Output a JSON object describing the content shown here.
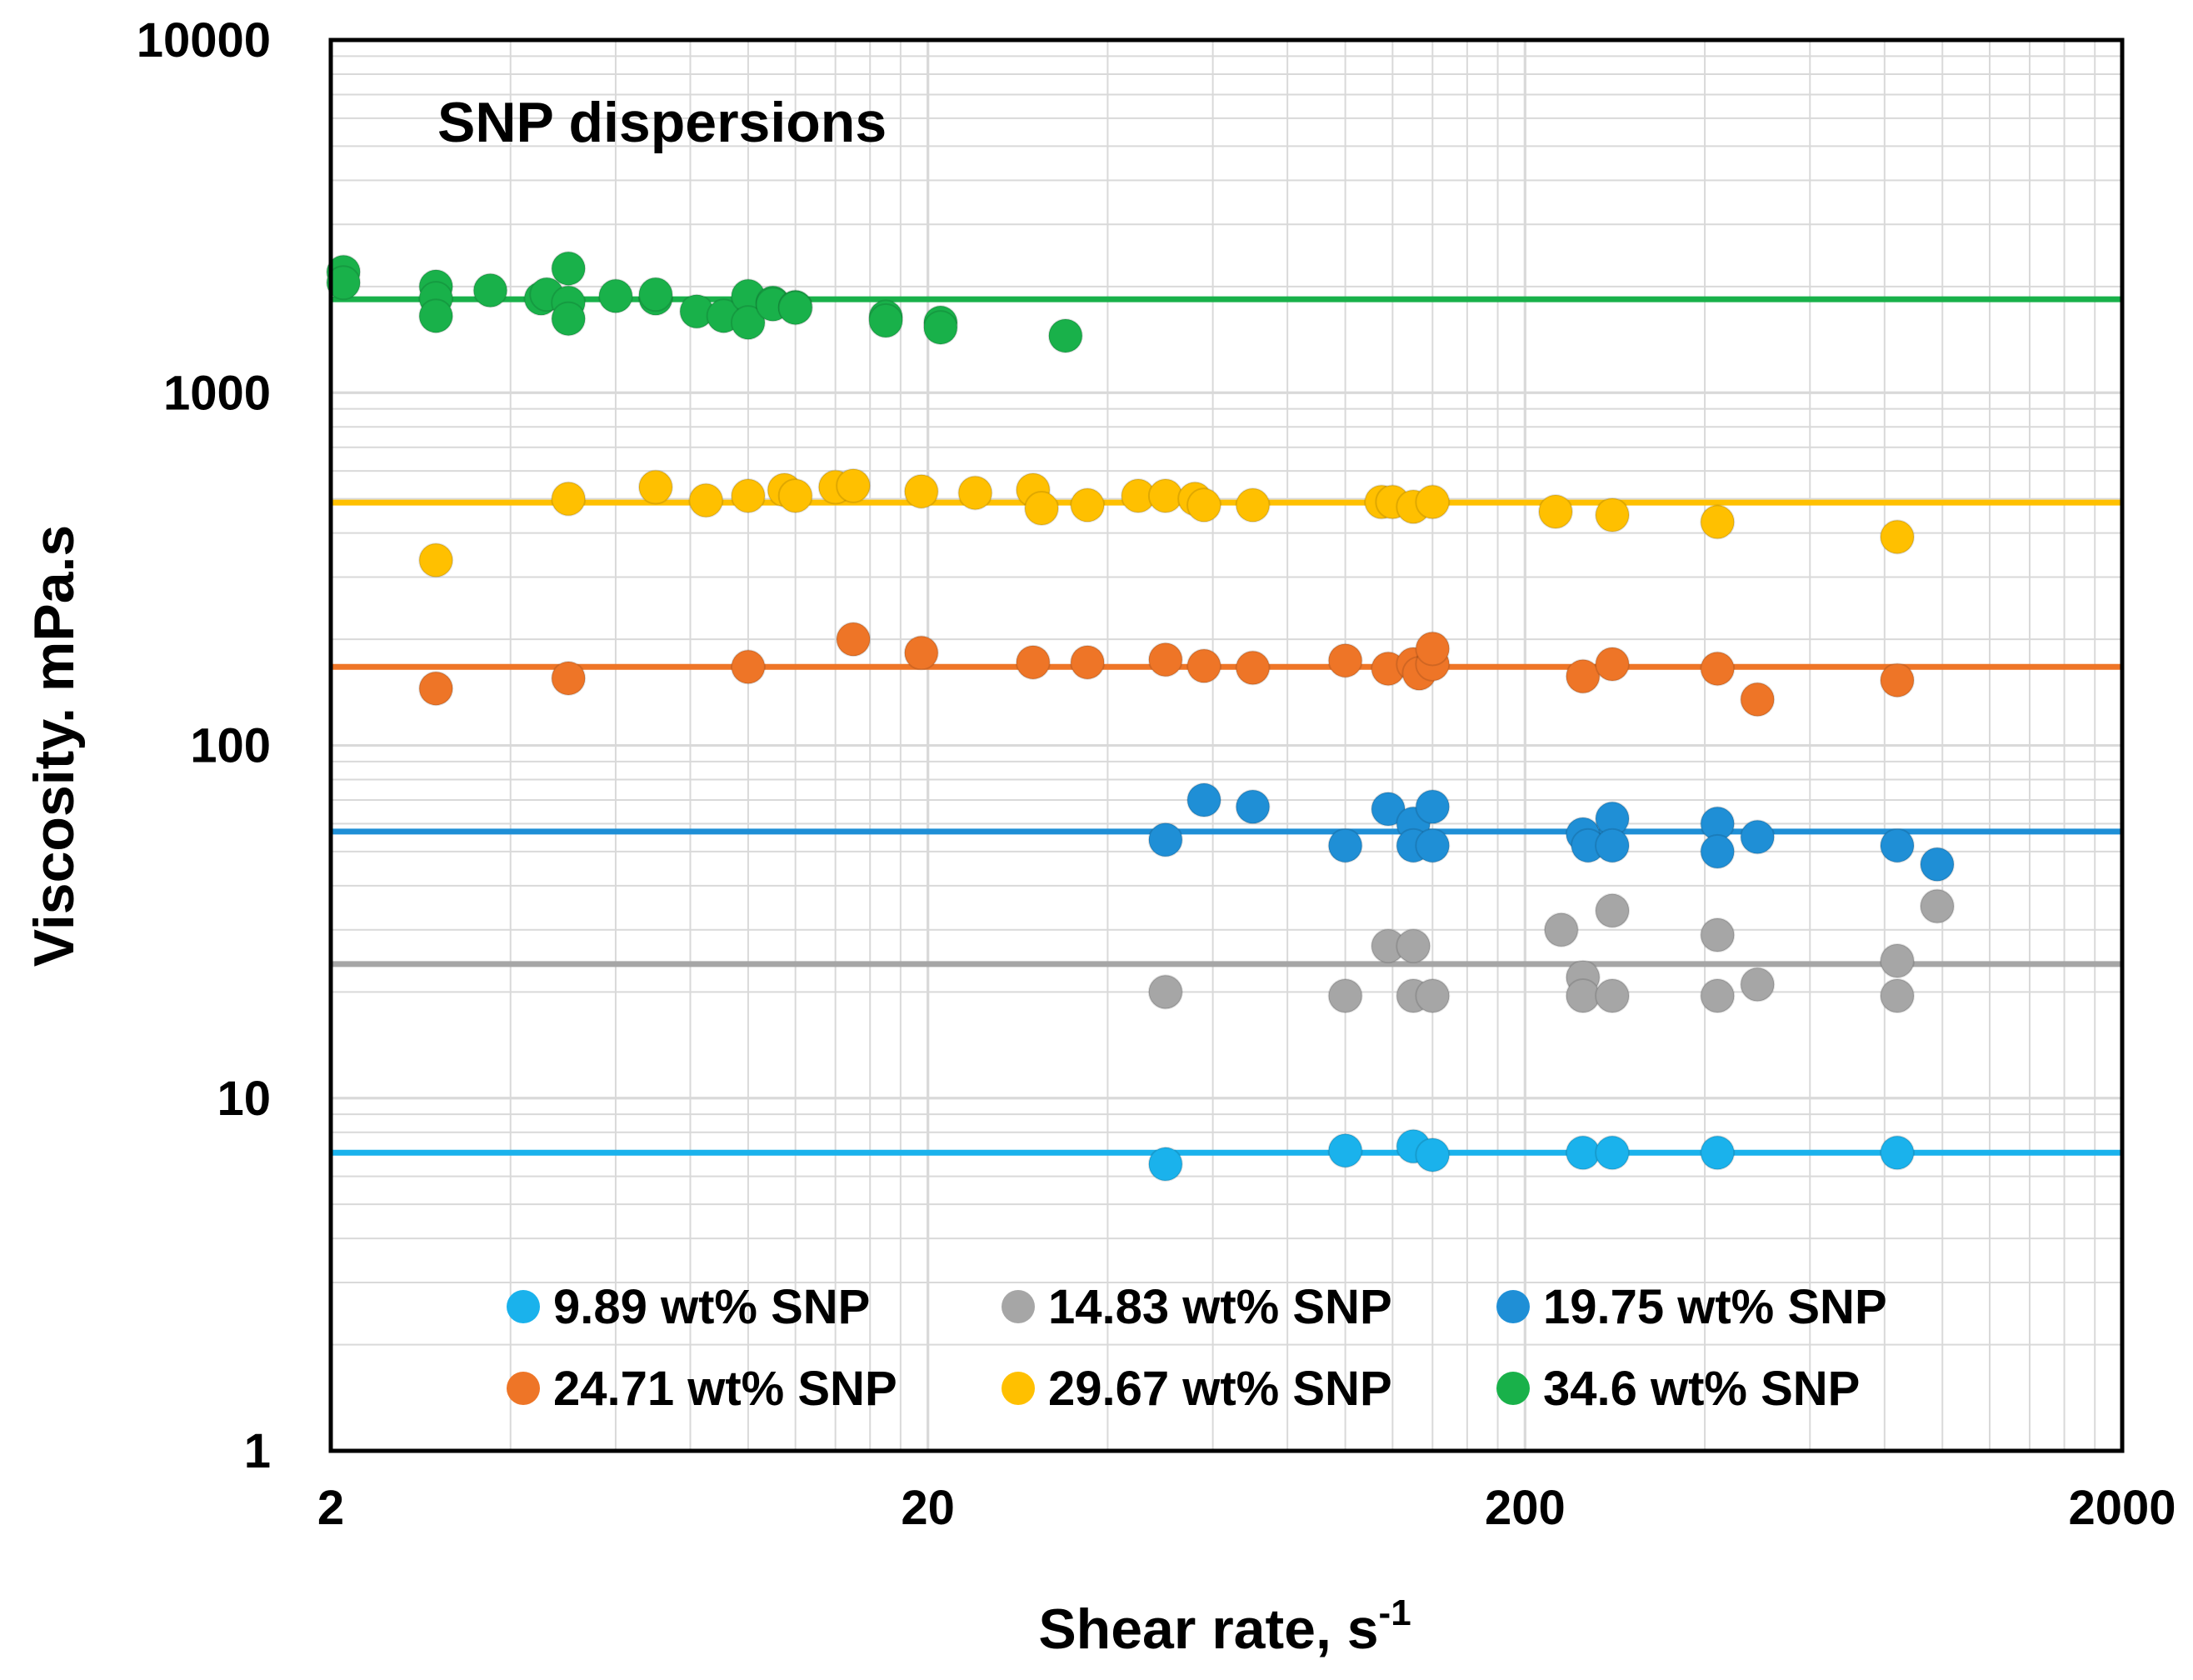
{
  "chart_data": {
    "type": "scatter",
    "title": "SNP dispersions",
    "xlabel": "Shear rate, s",
    "xlabel_superscript": "-1",
    "ylabel": "Viscosity. mPa.s",
    "xscale": "log",
    "yscale": "log",
    "xlim": [
      2,
      2000
    ],
    "ylim": [
      1,
      10000
    ],
    "xticks": [
      {
        "value": 2,
        "label": "2"
      },
      {
        "value": 20,
        "label": "20"
      },
      {
        "value": 200,
        "label": "200"
      },
      {
        "value": 2000,
        "label": "2000"
      }
    ],
    "yticks": [
      {
        "value": 1,
        "label": "1"
      },
      {
        "value": 10,
        "label": "10"
      },
      {
        "value": 100,
        "label": "100"
      },
      {
        "value": 1000,
        "label": "1000"
      },
      {
        "value": 10000,
        "label": "10000"
      }
    ],
    "grid": true,
    "legend_position": "bottom-inside",
    "series": [
      {
        "name": "9.89 wt% SNP",
        "color": "#1ab2ec",
        "fit_value": 7.0,
        "x": [
          50,
          100,
          130,
          140,
          250,
          280,
          420,
          840
        ],
        "y": [
          6.5,
          7.1,
          7.3,
          6.9,
          7.0,
          7.0,
          7.0,
          7.0
        ]
      },
      {
        "name": "14.83 wt% SNP",
        "color": "#a6a6a6",
        "fit_value": 24,
        "x": [
          50,
          100,
          118,
          130,
          130,
          140,
          230,
          250,
          250,
          280,
          280,
          420,
          420,
          490,
          840,
          840,
          980
        ],
        "y": [
          20,
          19.5,
          27,
          27,
          19.5,
          19.5,
          30,
          22,
          19.5,
          34,
          19.5,
          29,
          19.5,
          21,
          24.5,
          19.5,
          35
        ]
      },
      {
        "name": "19.75 wt% SNP",
        "color": "#1f8fd6",
        "fit_value": 57,
        "x": [
          50,
          58,
          70,
          100,
          118,
          130,
          130,
          140,
          140,
          250,
          255,
          280,
          280,
          420,
          420,
          490,
          840,
          980
        ],
        "y": [
          54,
          70,
          67,
          52,
          66,
          60,
          52,
          67,
          52,
          56,
          52,
          62,
          52,
          60,
          50,
          55,
          52,
          46
        ]
      },
      {
        "name": "24.71 wt% SNP",
        "color": "#ee7527",
        "fit_value": 167,
        "x": [
          3,
          5,
          10,
          15,
          19.5,
          30,
          37,
          50,
          58,
          70,
          100,
          118,
          130,
          133,
          140,
          140,
          250,
          280,
          420,
          490,
          840
        ],
        "y": [
          145,
          155,
          167,
          200,
          183,
          172,
          172,
          175,
          168,
          166,
          174,
          165,
          170,
          160,
          170,
          188,
          157,
          170,
          165,
          135,
          153
        ]
      },
      {
        "name": "29.67 wt% SNP",
        "color": "#ffc000",
        "fit_value": 488,
        "x": [
          3,
          5,
          7,
          8.5,
          10,
          11.5,
          12,
          14,
          15,
          19.5,
          24,
          30,
          31,
          37,
          45,
          50,
          56,
          58,
          70,
          115,
          120,
          130,
          140,
          225,
          280,
          420,
          840
        ],
        "y": [
          335,
          500,
          540,
          495,
          510,
          530,
          510,
          540,
          545,
          525,
          520,
          530,
          470,
          480,
          510,
          510,
          500,
          480,
          480,
          490,
          490,
          475,
          490,
          460,
          450,
          430,
          390
        ]
      },
      {
        "name": "34.6 wt% SNP",
        "color": "#19b14a",
        "fit_value": 1840,
        "x": [
          2.1,
          2.1,
          3,
          3,
          3,
          3.7,
          4.5,
          4.6,
          5,
          5,
          5,
          6,
          7,
          7,
          8.2,
          9.1,
          10,
          10,
          11,
          11,
          12,
          12,
          17,
          17,
          21,
          21,
          34
        ],
        "y": [
          2200,
          2050,
          2000,
          1850,
          1650,
          1950,
          1850,
          1900,
          2250,
          1800,
          1620,
          1880,
          1850,
          1900,
          1700,
          1650,
          1880,
          1580,
          1800,
          1780,
          1750,
          1740,
          1640,
          1600,
          1580,
          1530,
          1450
        ]
      }
    ]
  }
}
